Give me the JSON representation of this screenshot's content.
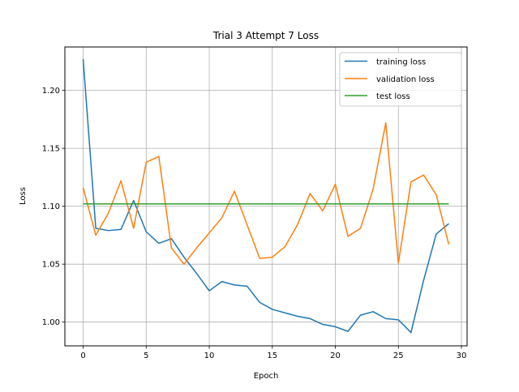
{
  "chart_data": {
    "type": "line",
    "title": "Trial 3 Attempt 7 Loss",
    "xlabel": "Epoch",
    "ylabel": "Loss",
    "xlim": [
      -1.45,
      30.45
    ],
    "ylim": [
      0.9795,
      1.2375
    ],
    "xticks": [
      0,
      5,
      10,
      15,
      20,
      25,
      30
    ],
    "yticks": [
      1.0,
      1.05,
      1.1,
      1.15,
      1.2
    ],
    "ytick_labels": [
      "1.00",
      "1.05",
      "1.10",
      "1.15",
      "1.20"
    ],
    "grid": true,
    "legend_position": "top-right",
    "x": [
      0,
      1,
      2,
      3,
      4,
      5,
      6,
      7,
      8,
      9,
      10,
      11,
      12,
      13,
      14,
      15,
      16,
      17,
      18,
      19,
      20,
      21,
      22,
      23,
      24,
      25,
      26,
      27,
      28,
      29
    ],
    "series": [
      {
        "name": "training loss",
        "color": "#1f77b4",
        "values": [
          1.227,
          1.081,
          1.079,
          1.08,
          1.105,
          1.078,
          1.068,
          1.072,
          1.056,
          1.042,
          1.027,
          1.035,
          1.032,
          1.031,
          1.017,
          1.011,
          1.008,
          1.005,
          1.003,
          0.998,
          0.996,
          0.992,
          1.006,
          1.009,
          1.003,
          1.002,
          0.991,
          1.036,
          1.076,
          1.085
        ]
      },
      {
        "name": "validation loss",
        "color": "#ff7f0e",
        "values": [
          1.116,
          1.075,
          1.094,
          1.122,
          1.081,
          1.138,
          1.143,
          1.064,
          1.05,
          1.064,
          1.077,
          1.09,
          1.113,
          1.084,
          1.055,
          1.056,
          1.065,
          1.084,
          1.111,
          1.096,
          1.119,
          1.074,
          1.081,
          1.115,
          1.172,
          1.051,
          1.121,
          1.127,
          1.11,
          1.067
        ]
      },
      {
        "name": "test loss",
        "color": "#2ca02c",
        "values": [
          1.102,
          1.102,
          1.102,
          1.102,
          1.102,
          1.102,
          1.102,
          1.102,
          1.102,
          1.102,
          1.102,
          1.102,
          1.102,
          1.102,
          1.102,
          1.102,
          1.102,
          1.102,
          1.102,
          1.102,
          1.102,
          1.102,
          1.102,
          1.102,
          1.102,
          1.102,
          1.102,
          1.102,
          1.102,
          1.102
        ]
      }
    ]
  }
}
